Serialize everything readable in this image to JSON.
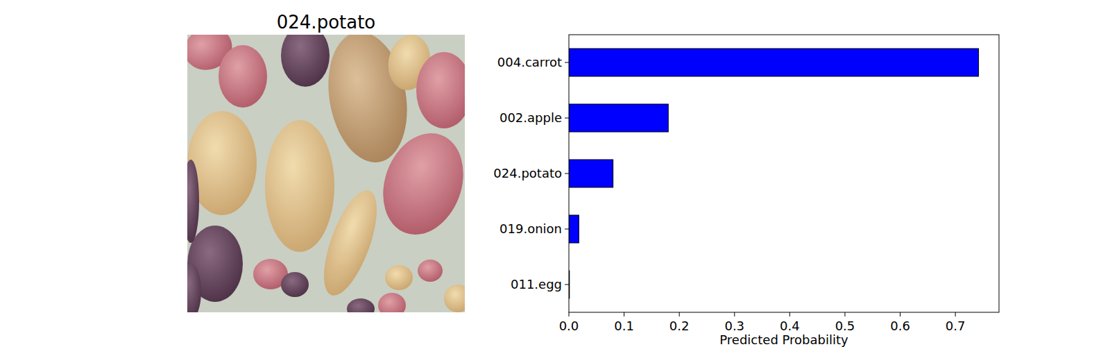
{
  "image": {
    "title": "024.potato"
  },
  "chart_data": {
    "type": "bar",
    "orientation": "horizontal",
    "categories": [
      "004.carrot",
      "002.apple",
      "024.potato",
      "019.onion",
      "011.egg"
    ],
    "values": [
      0.742,
      0.18,
      0.08,
      0.018,
      0.001
    ],
    "color": "#0000ff",
    "xlabel": "Predicted Probability",
    "xlim": [
      0,
      0.779
    ],
    "xticks": [
      {
        "value": 0,
        "label": "0.0"
      },
      0.1,
      0.2,
      0.3,
      0.4,
      0.5,
      0.6,
      0.7
    ],
    "grid": false
  }
}
